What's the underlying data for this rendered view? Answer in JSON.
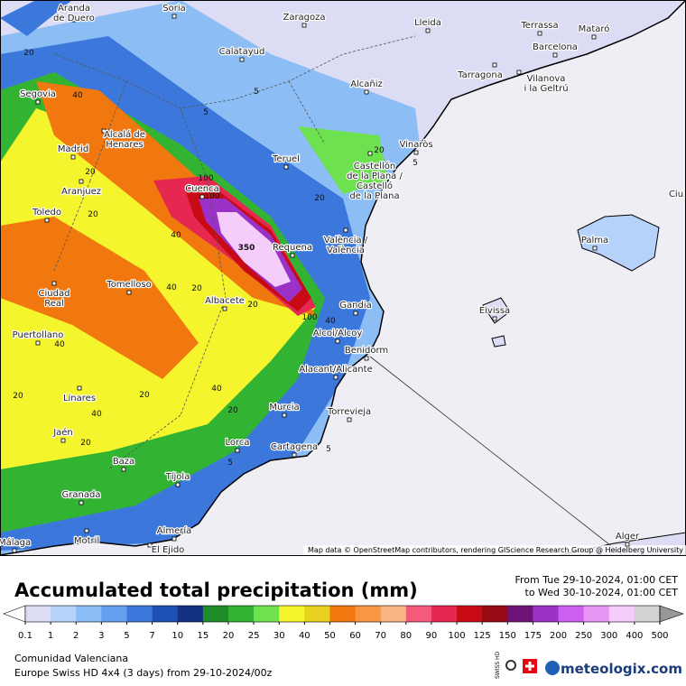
{
  "map": {
    "attribution": "Map data © OpenStreetMap contributors, rendering GIScience Research Group @ Heidelberg University",
    "cities": [
      [
        "Aranda",
        "de Duero"
      ],
      [
        "Soria"
      ],
      [
        "Zaragoza"
      ],
      [
        "Lleida"
      ],
      [
        "Terrassa"
      ],
      [
        "Mataró"
      ],
      [
        "Barcelona"
      ],
      [
        "Calatayud"
      ],
      [
        "Tarragona"
      ],
      [
        "Vilanova",
        "i la Geltrú"
      ],
      [
        "Alcañiz"
      ],
      [
        "Segovia"
      ],
      [
        "Alcalá de",
        "Henares"
      ],
      [
        "Madrid"
      ],
      [
        "Vinaròs"
      ],
      [
        "Teruel"
      ],
      [
        "Castellón",
        "de la Plana /",
        "Castelló",
        "de la Plana"
      ],
      [
        "Aranjuez"
      ],
      [
        "Cuenca"
      ],
      [
        "Ciu"
      ],
      [
        "Toledo"
      ],
      [
        "Palma"
      ],
      [
        "València /",
        "València"
      ],
      [
        "Requena"
      ],
      [
        "Tomelloso"
      ],
      [
        "Ciudad",
        "Real"
      ],
      [
        "Albacete"
      ],
      [
        "Gandia"
      ],
      [
        "Eivissa"
      ],
      [
        "Puertollano"
      ],
      [
        "Alcoi/Alcoy"
      ],
      [
        "Benidorm"
      ],
      [
        "Alacant/Alicante"
      ],
      [
        "Linares"
      ],
      [
        "Murcia"
      ],
      [
        "Torrevieja"
      ],
      [
        "Jaén"
      ],
      [
        "Lorca"
      ],
      [
        "Cartagena"
      ],
      [
        "Baza"
      ],
      [
        "Tíjola"
      ],
      [
        "Granada"
      ],
      [
        "Almería"
      ],
      [
        "Alger"
      ],
      [
        "Málaga"
      ],
      [
        "Motril"
      ],
      [
        "El Ejido"
      ]
    ],
    "contour_labels": [
      20,
      40,
      5,
      5,
      20,
      40,
      20,
      100,
      100,
      350,
      100,
      20,
      40,
      20,
      40,
      20,
      40,
      20,
      40,
      20,
      20,
      5,
      5,
      20,
      5,
      20,
      40
    ]
  },
  "legend": {
    "title": "Accumulated total precipitation (mm)",
    "period": [
      "From Tue 29-10-2024, 01:00 CET",
      "to Wed 30-10-2024, 01:00 CET"
    ],
    "ticks": [
      0.1,
      1,
      2,
      3,
      5,
      7,
      10,
      15,
      20,
      25,
      30,
      40,
      50,
      60,
      70,
      80,
      90,
      100,
      125,
      150,
      175,
      200,
      250,
      300,
      400,
      500
    ],
    "colors": [
      "#dcdcf5",
      "#b4d2fa",
      "#8cbef5",
      "#64a0ee",
      "#3c78dc",
      "#1e50b4",
      "#143282",
      "#1e8c28",
      "#32b432",
      "#6ee150",
      "#f5f52d",
      "#e6d21e",
      "#f0780f",
      "#fa9641",
      "#fab482",
      "#f55a7d",
      "#e62850",
      "#c80a14",
      "#960a14",
      "#6e1478",
      "#9b32c8",
      "#cd5ff0",
      "#e696f5",
      "#f5cdfa",
      "#d2d2d2"
    ],
    "under_color": "#ffffff",
    "over_color": "#969696"
  },
  "footer": {
    "region": "Comunidad Valenciana",
    "model": "Europe Swiss HD 4x4 (3 days) from 29-10-2024/00z",
    "brand": "meteologix.com",
    "badge": "SWISS HD"
  }
}
